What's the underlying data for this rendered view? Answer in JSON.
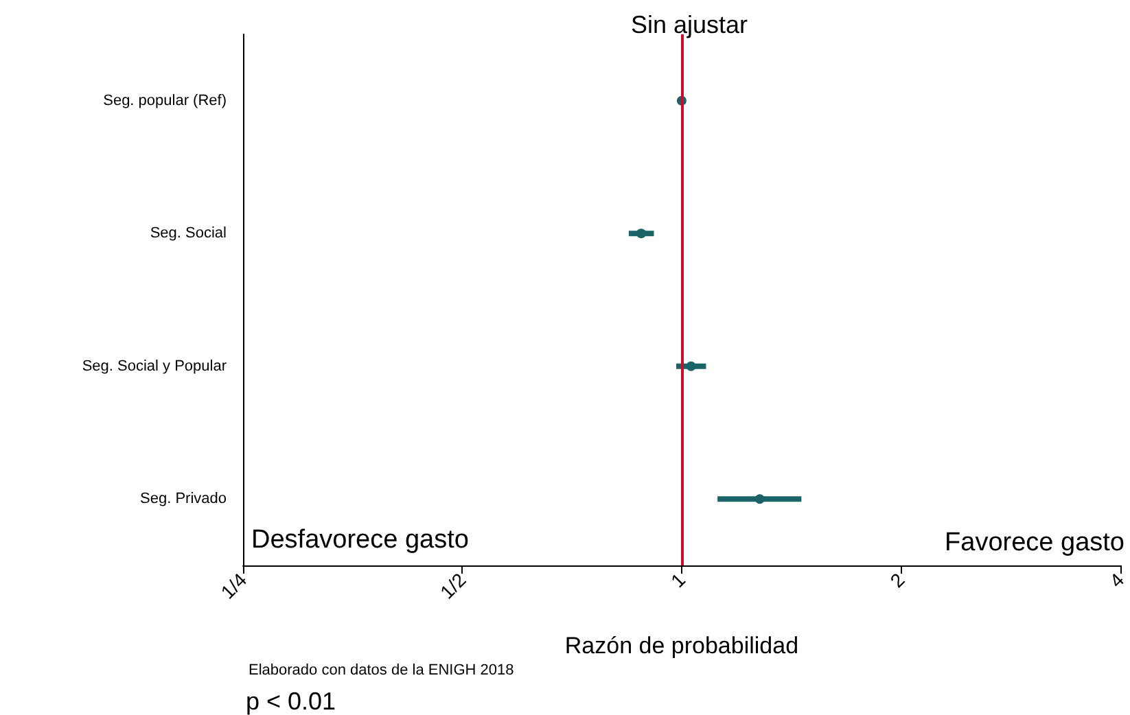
{
  "chart_data": {
    "type": "scatter",
    "title": "Sin ajustar",
    "xlabel": "Razón de probabilidad",
    "orientation": "horizontal",
    "categories": [
      "Seg. popular (Ref)",
      "Seg. Social",
      "Seg. Social y Popular",
      "Seg. Privado"
    ],
    "series": [
      {
        "color": "#1a6366",
        "values": [
          1,
          0.88,
          1.03,
          1.28
        ],
        "errors": [
          null,
          [
            0.846,
            0.916
          ],
          [
            0.983,
            1.08
          ],
          [
            1.12,
            1.46
          ]
        ]
      }
    ],
    "log": "x",
    "xlim": [
      0.25,
      4
    ],
    "xticks": [
      {
        "value": 0.25,
        "label": "1/4"
      },
      {
        "value": 0.5,
        "label": "1/2"
      },
      1,
      2,
      4
    ],
    "ref_lines": [
      {
        "axis": "x",
        "value": 1,
        "label": null,
        "color": "#c8102e"
      }
    ],
    "annotations": [
      "Desfavorece gasto",
      "Favorece gasto",
      "Elaborado con datos de la ENIGH 2018",
      "p < 0.01"
    ],
    "grid": false,
    "marker": "circle"
  }
}
